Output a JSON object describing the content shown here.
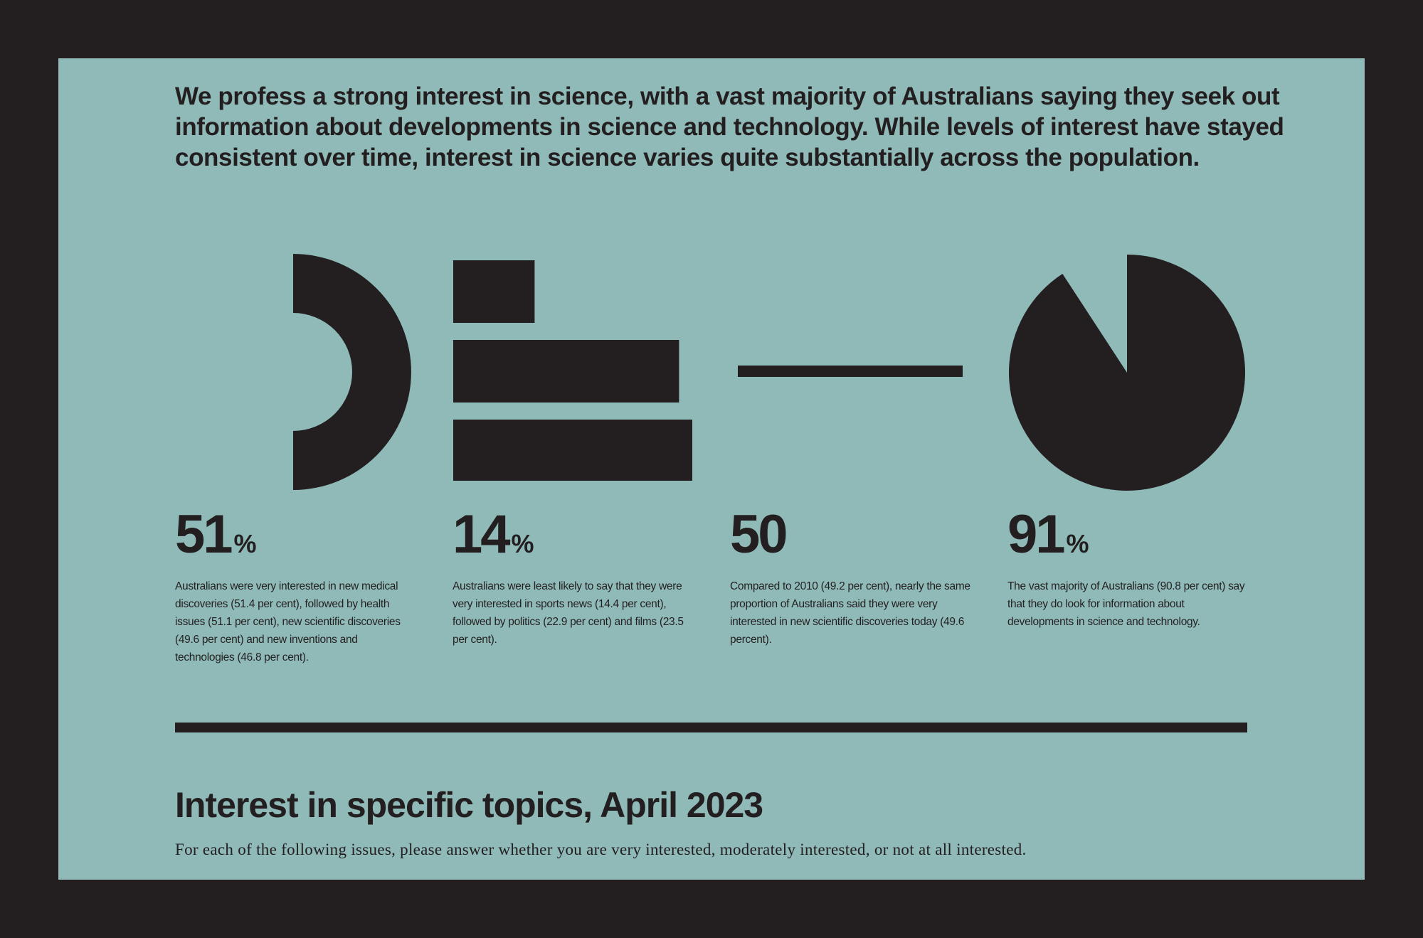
{
  "intro": "We profess a strong interest in science, with a vast majority of Australians saying they seek out information about developments in science and technology. While levels of interest have stayed consistent over time, interest in science varies quite substantially across the population.",
  "colors": {
    "frame": "#231f20",
    "panel": "#8fbab8",
    "ink": "#231f20"
  },
  "stats": [
    {
      "value": "51",
      "unit": "%",
      "graphic": "half-ring",
      "description": "Australians were very interested in new medical discoveries (51.4 per cent), followed by health issues (51.1 per cent), new scientific discoveries (49.6 per cent) and new inventions and technologies (46.8 per cent)."
    },
    {
      "value": "14",
      "unit": "%",
      "graphic": "horizontal-bars",
      "bar_values": [
        14.4,
        22.9,
        23.5
      ],
      "description": "Australians were least likely to say that they were very interested in sports news (14.4 per cent), followed by politics (22.9 per cent) and films (23.5 per cent)."
    },
    {
      "value": "50",
      "unit": "",
      "graphic": "flat-line",
      "description": "Compared to 2010 (49.2 per cent), nearly the same proportion of Australians said they were very interested in new scientific discoveries today (49.6 percent)."
    },
    {
      "value": "91",
      "unit": "%",
      "graphic": "pie",
      "pie_fraction": 0.908,
      "description": "The vast majority of Australians (90.8 per cent) say that they do look for information about developments in science and technology."
    }
  ],
  "section": {
    "title": "Interest in specific topics, April 2023",
    "subtitle": "For each of the following issues, please answer whether you are very interested, moderately interested, or not at all interested."
  }
}
